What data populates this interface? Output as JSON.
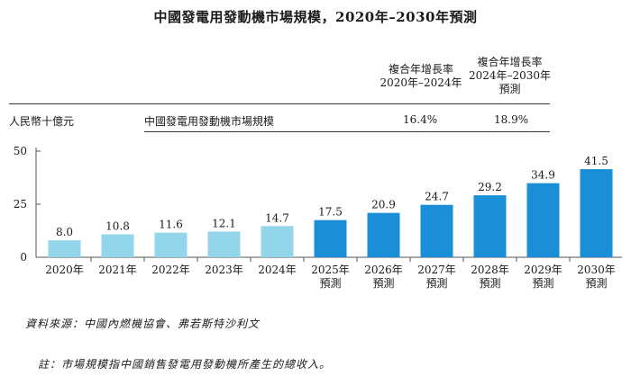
{
  "title": "中國發電用發動機市場規模，2020年–2030年預測",
  "table": {
    "cagr_header_1": "複合年增長率\n2020年–2024年",
    "cagr_header_2": "複合年增長率\n2024年–2030年\n預測",
    "unit_label": "人民幣十億元",
    "row_label": "中國發電用發動機市場規模",
    "cagr_value_1": "16.4%",
    "cagr_value_2": "18.9%"
  },
  "colors": {
    "historical": "#93d5ea",
    "forecast": "#1a8fd8",
    "axis": "#555555",
    "grid": "#bdbdbd"
  },
  "chart_data": {
    "type": "bar",
    "title": "中國發電用發動機市場規模，2020年–2030年預測",
    "ylabel": "人民幣十億元",
    "ylim": [
      0,
      50
    ],
    "yticks": [
      0,
      25,
      50
    ],
    "categories": [
      "2020年",
      "2021年",
      "2022年",
      "2023年",
      "2024年",
      "2025年\n預測",
      "2026年\n預測",
      "2027年\n預測",
      "2028年\n預測",
      "2029年\n預測",
      "2030年\n預測"
    ],
    "values": [
      8.0,
      10.8,
      11.6,
      12.1,
      14.7,
      17.5,
      20.9,
      24.7,
      29.2,
      34.9,
      41.5
    ],
    "value_labels": [
      "8.0",
      "10.8",
      "11.6",
      "12.1",
      "14.7",
      "17.5",
      "20.9",
      "24.7",
      "29.2",
      "34.9",
      "41.5"
    ],
    "forecast": [
      false,
      false,
      false,
      false,
      false,
      true,
      true,
      true,
      true,
      true,
      true
    ]
  },
  "footnotes": {
    "source": "資料來源：中國內燃機協會、弗若斯特沙利文",
    "note": "註：市場規模指中國銷售發電用發動機所產生的總收入。"
  }
}
